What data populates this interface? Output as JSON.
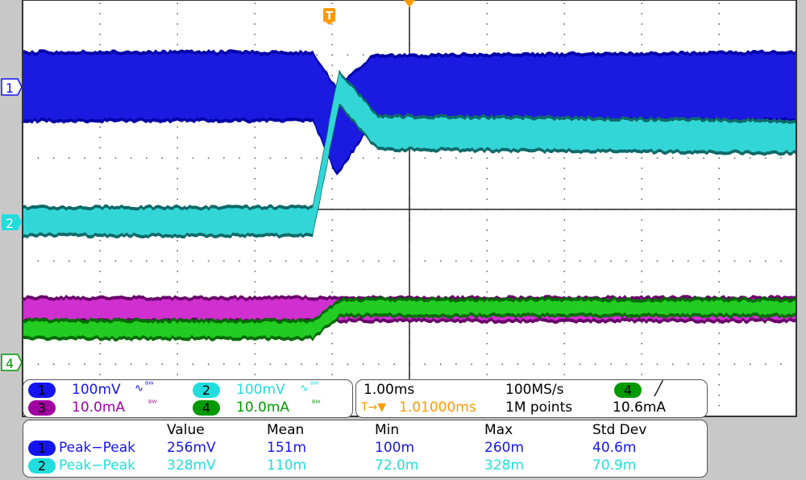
{
  "colors": {
    "ch1": "#1515f0",
    "ch2": "#22dddd",
    "ch3": "#a000a0",
    "ch4": "#009900",
    "trigger": "#ff9a00",
    "grid": "#000000"
  },
  "markers": {
    "ch1": "1",
    "ch2": "2",
    "ch4": "4",
    "trigger": "T"
  },
  "channels": [
    {
      "num": "1",
      "scale": "100mV",
      "bw": "ᴮᵂ",
      "coupling": "∿"
    },
    {
      "num": "2",
      "scale": "100mV",
      "bw": "ᴮᵂ",
      "coupling": "∿"
    },
    {
      "num": "3",
      "scale": "10.0mA",
      "bw": "ᴮᵂ"
    },
    {
      "num": "4",
      "scale": "10.0mA",
      "bw": "ᴮᵂ"
    }
  ],
  "timebase": {
    "scale": "1.00ms",
    "sample_rate": "100MS/s",
    "trigger_pos": "1.01000ms",
    "trigger_prefix": "T→▼",
    "record": "1M points",
    "trigger_source": "4",
    "trigger_slope": "rising-edge",
    "trigger_level": "10.6mA"
  },
  "measurements": {
    "headers": [
      "Value",
      "Mean",
      "Min",
      "Max",
      "Std Dev"
    ],
    "rows": [
      {
        "ch": "1",
        "name": "Peak−Peak",
        "value": "256mV",
        "mean": "151m",
        "min": "100m",
        "max": "260m",
        "std": "40.6m"
      },
      {
        "ch": "2",
        "name": "Peak−Peak",
        "value": "328mV",
        "mean": "110m",
        "min": "72.0m",
        "max": "328m",
        "std": "70.9m"
      }
    ]
  },
  "chart_data": {
    "type": "area",
    "x_unit": "ms (relative to trigger)",
    "xlim": [
      -3.99,
      6.01
    ],
    "divisions": {
      "x": 10,
      "y": 8
    },
    "grid": true,
    "series": [
      {
        "name": "1",
        "unit": "mV",
        "per_div": 100,
        "x": [
          -3.99,
          -0.24,
          0.07,
          0.54,
          6.01
        ],
        "y_max": [
          67,
          67,
          -3,
          60,
          67
        ],
        "y_min": [
          -65,
          -65,
          -172,
          -65,
          -65
        ]
      },
      {
        "name": "2",
        "unit": "mV",
        "per_div": 100,
        "x": [
          -3.99,
          -0.24,
          0.1,
          0.6,
          6.01
        ],
        "y_max": [
          27,
          27,
          292,
          205,
          195
        ],
        "y_min": [
          -27,
          -27,
          227,
          140,
          133
        ]
      },
      {
        "name": "3",
        "unit": "mA",
        "per_div": 10,
        "x": [
          -3.99,
          6.01
        ],
        "y_max": [
          12.5,
          12.5
        ],
        "y_min": [
          8.1,
          8.1
        ]
      },
      {
        "name": "4",
        "unit": "mA",
        "per_div": 10,
        "x": [
          -3.99,
          -0.24,
          0.12,
          6.01
        ],
        "y_max": [
          8.1,
          8.1,
          12.2,
          12.2
        ],
        "y_min": [
          4.7,
          4.7,
          9.1,
          9.1
        ]
      }
    ]
  }
}
